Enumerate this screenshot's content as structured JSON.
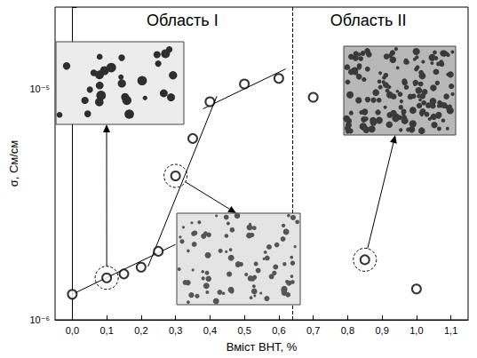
{
  "chart_data": {
    "type": "scatter",
    "x_label": "Вміст ВНТ, %",
    "y_label": "σ, См/см",
    "log": "y",
    "marker": "circle",
    "color": "#000000",
    "x": [
      0,
      0.1,
      0.15,
      0.2,
      0.25,
      0.3,
      0.35,
      0.4,
      0.5,
      0.6,
      0.7,
      0.85,
      1.0
    ],
    "values": [
      1.29e-06,
      1.52e-06,
      1.58e-06,
      1.69e-06,
      1.98e-06,
      4.2e-06,
      6.1e-06,
      8.8e-06,
      1.05e-05,
      1.11e-05,
      9.2e-06,
      1.82e-06,
      1.36e-06
    ],
    "fits": [
      {
        "x": [
          0,
          0.3
        ],
        "values": [
          1.29e-06,
          2.12e-06
        ]
      },
      {
        "x": [
          0.22,
          0.42
        ],
        "values": [
          1.7e-06,
          9.3e-06
        ]
      },
      {
        "x": [
          0.38,
          0.62
        ],
        "values": [
          8.2e-06,
          1.22e-05
        ]
      }
    ],
    "divider_x": 0.64,
    "regions": [
      {
        "label": "Область I",
        "x": 0.32
      },
      {
        "label": "Область II",
        "x": 0.86
      }
    ],
    "highlighted_x": [
      0.1,
      0.3,
      0.85
    ],
    "xlim": [
      -0.05,
      1.15
    ],
    "xticks": [
      {
        "value": 0,
        "label": "0,0"
      },
      {
        "value": 0.1,
        "label": "0,1"
      },
      {
        "value": 0.2,
        "label": "0,2"
      },
      {
        "value": 0.3,
        "label": "0,3"
      },
      {
        "value": 0.4,
        "label": "0,4"
      },
      {
        "value": 0.5,
        "label": "0,5"
      },
      {
        "value": 0.6,
        "label": "0,6"
      },
      {
        "value": 0.7,
        "label": "0,7"
      },
      {
        "value": 0.8,
        "label": "0,8"
      },
      {
        "value": 0.9,
        "label": "0,9"
      },
      {
        "value": 1.0,
        "label": "1,0"
      },
      {
        "value": 1.1,
        "label": "1,1"
      }
    ],
    "ylim": [
      1e-06,
      2.26e-05
    ],
    "yticks": [
      {
        "value": 1e-06,
        "label": "10⁻⁶"
      },
      {
        "value": 1e-05,
        "label": "10⁻⁵"
      }
    ]
  }
}
